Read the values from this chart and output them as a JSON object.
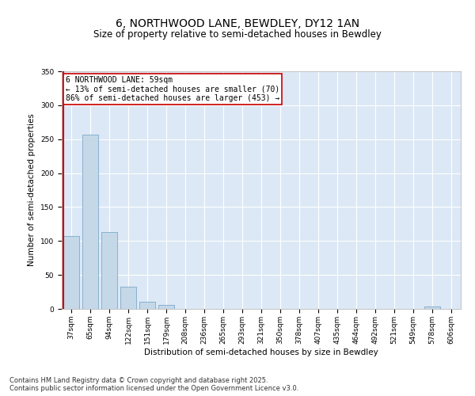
{
  "title_line1": "6, NORTHWOOD LANE, BEWDLEY, DY12 1AN",
  "title_line2": "Size of property relative to semi-detached houses in Bewdley",
  "xlabel": "Distribution of semi-detached houses by size in Bewdley",
  "ylabel": "Number of semi-detached properties",
  "categories": [
    "37sqm",
    "65sqm",
    "94sqm",
    "122sqm",
    "151sqm",
    "179sqm",
    "208sqm",
    "236sqm",
    "265sqm",
    "293sqm",
    "321sqm",
    "350sqm",
    "378sqm",
    "407sqm",
    "435sqm",
    "464sqm",
    "492sqm",
    "521sqm",
    "549sqm",
    "578sqm",
    "606sqm"
  ],
  "values": [
    107,
    257,
    113,
    33,
    10,
    6,
    0,
    0,
    0,
    0,
    0,
    0,
    0,
    0,
    0,
    0,
    0,
    0,
    0,
    3,
    0
  ],
  "bar_color": "#c5d8e8",
  "bar_edge_color": "#6b9dc2",
  "highlight_line_color": "#cc0000",
  "annotation_text": "6 NORTHWOOD LANE: 59sqm\n← 13% of semi-detached houses are smaller (70)\n86% of semi-detached houses are larger (453) →",
  "annotation_box_color": "#ffffff",
  "annotation_box_edge_color": "#cc0000",
  "ylim": [
    0,
    350
  ],
  "yticks": [
    0,
    50,
    100,
    150,
    200,
    250,
    300,
    350
  ],
  "footnote": "Contains HM Land Registry data © Crown copyright and database right 2025.\nContains public sector information licensed under the Open Government Licence v3.0.",
  "background_color": "#ffffff",
  "plot_bg_color": "#dce8f5",
  "grid_color": "#ffffff",
  "title_fontsize": 10,
  "subtitle_fontsize": 8.5,
  "axis_label_fontsize": 7.5,
  "tick_fontsize": 6.5,
  "annotation_fontsize": 7,
  "footnote_fontsize": 6
}
